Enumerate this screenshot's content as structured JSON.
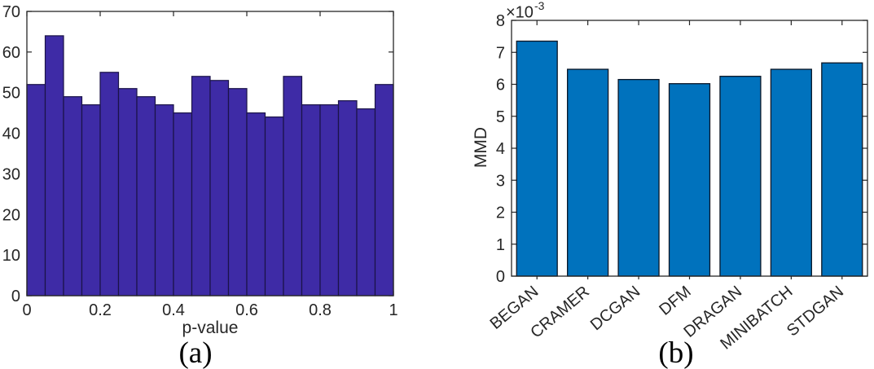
{
  "figure": {
    "captions": [
      "(a)",
      "(b)"
    ]
  },
  "axis": {
    "color": "#262626",
    "background": "#ffffff"
  },
  "chart_data": [
    {
      "type": "bar",
      "subtype": "histogram",
      "panel": "a",
      "title": "",
      "xlabel": "p-value",
      "ylabel": "",
      "xlim": [
        0,
        1
      ],
      "ylim": [
        0,
        70
      ],
      "xtick_values": [
        0,
        0.2,
        0.4,
        0.6,
        0.8,
        1
      ],
      "xtick_labels": [
        "0",
        "0.2",
        "0.4",
        "0.6",
        "0.8",
        "1"
      ],
      "ytick_values": [
        0,
        10,
        20,
        30,
        40,
        50,
        60,
        70
      ],
      "bin_start": 0,
      "bin_width": 0.05,
      "values": [
        52,
        64,
        49,
        47,
        55,
        51,
        49,
        47,
        45,
        54,
        53,
        51,
        45,
        44,
        54,
        47,
        47,
        48,
        46,
        52
      ],
      "bar_color": "#3E2BA6",
      "bar_edge_color": "#1A1347",
      "grid": false,
      "legend": null
    },
    {
      "type": "bar",
      "panel": "b",
      "title": "",
      "xlabel": "",
      "ylabel": "MMD",
      "offset_label": {
        "base": "×10",
        "exponent": "-3"
      },
      "unit_multiplier": 0.001,
      "ylim": [
        0,
        8
      ],
      "ytick_values": [
        0,
        1,
        2,
        3,
        4,
        5,
        6,
        7,
        8
      ],
      "categories": [
        "BEGAN",
        "CRAMER",
        "DCGAN",
        "DFM",
        "DRAGAN",
        "MINIBATCH",
        "STDGAN"
      ],
      "values": [
        7.35,
        6.47,
        6.15,
        6.02,
        6.25,
        6.47,
        6.67
      ],
      "xtick_rotation": -40,
      "bar_color": "#0072BD",
      "bar_edge_color": "#0A1626",
      "grid": false,
      "legend": null
    }
  ]
}
